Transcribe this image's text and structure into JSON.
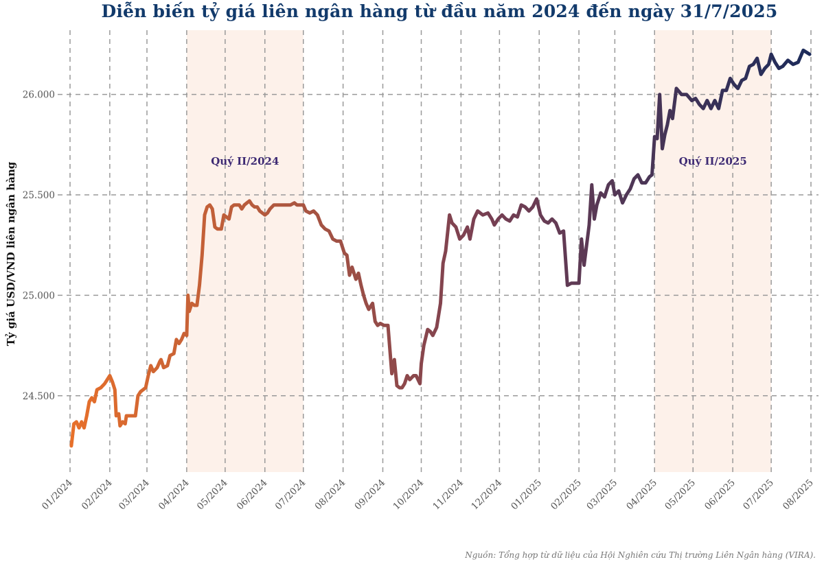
{
  "title": "Diễn biến tỷ giá liên ngân hàng từ đầu năm 2024 đến ngày 31/7/2025",
  "source": "Nguồn: Tổng hợp từ dữ liệu của Hội Nghiên cứu Thị trường Liên Ngân hàng (VIRA).",
  "colors": {
    "start": "#e8702a",
    "end": "#1c2b5a",
    "band": "#fdf1ea",
    "band_label": "#3d2a73",
    "title": "#123a6b",
    "grid": "#999999"
  },
  "chart_data": {
    "type": "line",
    "title": "Diễn biến tỷ giá liên ngân hàng từ đầu năm 2024 đến ngày 31/7/2025",
    "ylabel": "Tỷ giá USD/VND liên ngân hàng",
    "xlabel": "",
    "grid": true,
    "x_ticks": [
      "01/2024",
      "02/2024",
      "03/2024",
      "04/2024",
      "05/2024",
      "06/2024",
      "07/2024",
      "08/2024",
      "09/2024",
      "10/2024",
      "11/2024",
      "12/2024",
      "01/2025",
      "02/2025",
      "03/2025",
      "04/2025",
      "05/2025",
      "06/2025",
      "07/2025",
      "08/2025"
    ],
    "y_ticks": [
      24500,
      25000,
      25500,
      26000
    ],
    "y_tick_labels": [
      "24.500",
      "25.000",
      "25.500",
      "26.000"
    ],
    "ylim": [
      24120,
      26320
    ],
    "xlim": [
      "2024-01-01",
      "2025-08-01"
    ],
    "bands": [
      {
        "label": "Quý II/2024",
        "start": "2024-04-01",
        "end": "2024-07-01"
      },
      {
        "label": "Quý II/2025",
        "start": "2025-04-01",
        "end": "2025-07-01"
      }
    ],
    "series": [
      {
        "points": [
          [
            "2024-01-02",
            24250
          ],
          [
            "2024-01-04",
            24360
          ],
          [
            "2024-01-06",
            24370
          ],
          [
            "2024-01-08",
            24340
          ],
          [
            "2024-01-10",
            24370
          ],
          [
            "2024-01-12",
            24340
          ],
          [
            "2024-01-14",
            24400
          ],
          [
            "2024-01-16",
            24470
          ],
          [
            "2024-01-18",
            24490
          ],
          [
            "2024-01-20",
            24470
          ],
          [
            "2024-01-22",
            24530
          ],
          [
            "2024-01-25",
            24540
          ],
          [
            "2024-01-28",
            24560
          ],
          [
            "2024-02-01",
            24600
          ],
          [
            "2024-02-03",
            24570
          ],
          [
            "2024-02-05",
            24530
          ],
          [
            "2024-02-06",
            24400
          ],
          [
            "2024-02-08",
            24410
          ],
          [
            "2024-02-09",
            24350
          ],
          [
            "2024-02-11",
            24370
          ],
          [
            "2024-02-13",
            24360
          ],
          [
            "2024-02-14",
            24400
          ],
          [
            "2024-02-18",
            24400
          ],
          [
            "2024-02-21",
            24400
          ],
          [
            "2024-02-23",
            24500
          ],
          [
            "2024-02-25",
            24520
          ],
          [
            "2024-02-27",
            24530
          ],
          [
            "2024-02-29",
            24540
          ],
          [
            "2024-03-02",
            24600
          ],
          [
            "2024-03-04",
            24650
          ],
          [
            "2024-03-06",
            24620
          ],
          [
            "2024-03-09",
            24640
          ],
          [
            "2024-03-11",
            24670
          ],
          [
            "2024-03-12",
            24680
          ],
          [
            "2024-03-14",
            24640
          ],
          [
            "2024-03-17",
            24650
          ],
          [
            "2024-03-19",
            24700
          ],
          [
            "2024-03-22",
            24710
          ],
          [
            "2024-03-24",
            24780
          ],
          [
            "2024-03-26",
            24760
          ],
          [
            "2024-03-28",
            24780
          ],
          [
            "2024-03-30",
            24810
          ],
          [
            "2024-04-01",
            24800
          ],
          [
            "2024-04-02",
            25000
          ],
          [
            "2024-04-03",
            24920
          ],
          [
            "2024-04-05",
            24960
          ],
          [
            "2024-04-07",
            24950
          ],
          [
            "2024-04-09",
            24950
          ],
          [
            "2024-04-11",
            25050
          ],
          [
            "2024-04-13",
            25200
          ],
          [
            "2024-04-15",
            25400
          ],
          [
            "2024-04-17",
            25440
          ],
          [
            "2024-04-19",
            25450
          ],
          [
            "2024-04-21",
            25430
          ],
          [
            "2024-04-23",
            25340
          ],
          [
            "2024-04-25",
            25330
          ],
          [
            "2024-04-28",
            25330
          ],
          [
            "2024-04-30",
            25400
          ],
          [
            "2024-05-02",
            25390
          ],
          [
            "2024-05-04",
            25380
          ],
          [
            "2024-05-06",
            25440
          ],
          [
            "2024-05-08",
            25450
          ],
          [
            "2024-05-10",
            25450
          ],
          [
            "2024-05-12",
            25450
          ],
          [
            "2024-05-14",
            25430
          ],
          [
            "2024-05-16",
            25450
          ],
          [
            "2024-05-18",
            25460
          ],
          [
            "2024-05-20",
            25470
          ],
          [
            "2024-05-22",
            25450
          ],
          [
            "2024-05-24",
            25440
          ],
          [
            "2024-05-26",
            25440
          ],
          [
            "2024-05-28",
            25420
          ],
          [
            "2024-05-30",
            25410
          ],
          [
            "2024-06-01",
            25400
          ],
          [
            "2024-06-03",
            25410
          ],
          [
            "2024-06-05",
            25430
          ],
          [
            "2024-06-08",
            25450
          ],
          [
            "2024-06-12",
            25450
          ],
          [
            "2024-06-15",
            25450
          ],
          [
            "2024-06-18",
            25450
          ],
          [
            "2024-06-21",
            25450
          ],
          [
            "2024-06-24",
            25460
          ],
          [
            "2024-06-26",
            25450
          ],
          [
            "2024-06-28",
            25450
          ],
          [
            "2024-07-01",
            25450
          ],
          [
            "2024-07-03",
            25420
          ],
          [
            "2024-07-06",
            25410
          ],
          [
            "2024-07-09",
            25420
          ],
          [
            "2024-07-12",
            25400
          ],
          [
            "2024-07-15",
            25350
          ],
          [
            "2024-07-18",
            25330
          ],
          [
            "2024-07-21",
            25320
          ],
          [
            "2024-07-24",
            25280
          ],
          [
            "2024-07-27",
            25270
          ],
          [
            "2024-07-30",
            25270
          ],
          [
            "2024-08-02",
            25210
          ],
          [
            "2024-08-04",
            25200
          ],
          [
            "2024-08-06",
            25100
          ],
          [
            "2024-08-08",
            25140
          ],
          [
            "2024-08-11",
            25080
          ],
          [
            "2024-08-13",
            25110
          ],
          [
            "2024-08-15",
            25050
          ],
          [
            "2024-08-17",
            25000
          ],
          [
            "2024-08-19",
            24960
          ],
          [
            "2024-08-21",
            24930
          ],
          [
            "2024-08-24",
            24960
          ],
          [
            "2024-08-26",
            24870
          ],
          [
            "2024-08-28",
            24850
          ],
          [
            "2024-08-30",
            24860
          ],
          [
            "2024-09-02",
            24850
          ],
          [
            "2024-09-05",
            24850
          ],
          [
            "2024-09-08",
            24610
          ],
          [
            "2024-09-10",
            24680
          ],
          [
            "2024-09-12",
            24550
          ],
          [
            "2024-09-14",
            24540
          ],
          [
            "2024-09-16",
            24540
          ],
          [
            "2024-09-18",
            24560
          ],
          [
            "2024-09-20",
            24600
          ],
          [
            "2024-09-22",
            24580
          ],
          [
            "2024-09-25",
            24600
          ],
          [
            "2024-09-27",
            24600
          ],
          [
            "2024-09-30",
            24560
          ],
          [
            "2024-10-01",
            24660
          ],
          [
            "2024-10-03",
            24750
          ],
          [
            "2024-10-06",
            24830
          ],
          [
            "2024-10-08",
            24820
          ],
          [
            "2024-10-10",
            24800
          ],
          [
            "2024-10-13",
            24840
          ],
          [
            "2024-10-16",
            24960
          ],
          [
            "2024-10-18",
            25160
          ],
          [
            "2024-10-20",
            25220
          ],
          [
            "2024-10-23",
            25400
          ],
          [
            "2024-10-25",
            25360
          ],
          [
            "2024-10-28",
            25340
          ],
          [
            "2024-10-31",
            25280
          ],
          [
            "2024-11-03",
            25300
          ],
          [
            "2024-11-06",
            25340
          ],
          [
            "2024-11-08",
            25280
          ],
          [
            "2024-11-11",
            25380
          ],
          [
            "2024-11-14",
            25420
          ],
          [
            "2024-11-18",
            25400
          ],
          [
            "2024-11-22",
            25410
          ],
          [
            "2024-11-25",
            25380
          ],
          [
            "2024-11-27",
            25350
          ],
          [
            "2024-11-30",
            25380
          ],
          [
            "2024-12-03",
            25400
          ],
          [
            "2024-12-06",
            25380
          ],
          [
            "2024-12-09",
            25370
          ],
          [
            "2024-12-12",
            25400
          ],
          [
            "2024-12-15",
            25390
          ],
          [
            "2024-12-18",
            25450
          ],
          [
            "2024-12-21",
            25440
          ],
          [
            "2024-12-24",
            25420
          ],
          [
            "2024-12-27",
            25440
          ],
          [
            "2024-12-30",
            25480
          ],
          [
            "2025-01-02",
            25400
          ],
          [
            "2025-01-05",
            25370
          ],
          [
            "2025-01-08",
            25360
          ],
          [
            "2025-01-11",
            25380
          ],
          [
            "2025-01-14",
            25360
          ],
          [
            "2025-01-17",
            25310
          ],
          [
            "2025-01-20",
            25320
          ],
          [
            "2025-01-23",
            25050
          ],
          [
            "2025-01-26",
            25060
          ],
          [
            "2025-01-29",
            25060
          ],
          [
            "2025-02-01",
            25060
          ],
          [
            "2025-02-03",
            25280
          ],
          [
            "2025-02-05",
            25150
          ],
          [
            "2025-02-07",
            25250
          ],
          [
            "2025-02-09",
            25350
          ],
          [
            "2025-02-11",
            25550
          ],
          [
            "2025-02-13",
            25380
          ],
          [
            "2025-02-15",
            25450
          ],
          [
            "2025-02-18",
            25510
          ],
          [
            "2025-02-21",
            25490
          ],
          [
            "2025-02-24",
            25550
          ],
          [
            "2025-02-27",
            25570
          ],
          [
            "2025-03-01",
            25500
          ],
          [
            "2025-03-04",
            25520
          ],
          [
            "2025-03-07",
            25460
          ],
          [
            "2025-03-10",
            25500
          ],
          [
            "2025-03-13",
            25530
          ],
          [
            "2025-03-16",
            25580
          ],
          [
            "2025-03-19",
            25600
          ],
          [
            "2025-03-22",
            25560
          ],
          [
            "2025-03-25",
            25560
          ],
          [
            "2025-03-28",
            25590
          ],
          [
            "2025-03-30",
            25600
          ],
          [
            "2025-04-01",
            25790
          ],
          [
            "2025-04-03",
            25780
          ],
          [
            "2025-04-05",
            26000
          ],
          [
            "2025-04-07",
            25730
          ],
          [
            "2025-04-09",
            25800
          ],
          [
            "2025-04-11",
            25850
          ],
          [
            "2025-04-13",
            25920
          ],
          [
            "2025-04-15",
            25880
          ],
          [
            "2025-04-18",
            26030
          ],
          [
            "2025-04-22",
            26000
          ],
          [
            "2025-04-26",
            26000
          ],
          [
            "2025-04-30",
            25970
          ],
          [
            "2025-05-03",
            25980
          ],
          [
            "2025-05-06",
            25950
          ],
          [
            "2025-05-09",
            25930
          ],
          [
            "2025-05-12",
            25970
          ],
          [
            "2025-05-15",
            25930
          ],
          [
            "2025-05-18",
            25970
          ],
          [
            "2025-05-21",
            25930
          ],
          [
            "2025-05-24",
            26020
          ],
          [
            "2025-05-27",
            26020
          ],
          [
            "2025-05-30",
            26080
          ],
          [
            "2025-06-02",
            26050
          ],
          [
            "2025-06-05",
            26030
          ],
          [
            "2025-06-08",
            26070
          ],
          [
            "2025-06-11",
            26080
          ],
          [
            "2025-06-14",
            26140
          ],
          [
            "2025-06-17",
            26150
          ],
          [
            "2025-06-20",
            26180
          ],
          [
            "2025-06-23",
            26100
          ],
          [
            "2025-06-26",
            26130
          ],
          [
            "2025-06-29",
            26150
          ],
          [
            "2025-07-01",
            26200
          ],
          [
            "2025-07-04",
            26160
          ],
          [
            "2025-07-07",
            26130
          ],
          [
            "2025-07-10",
            26140
          ],
          [
            "2025-07-14",
            26170
          ],
          [
            "2025-07-18",
            26150
          ],
          [
            "2025-07-22",
            26160
          ],
          [
            "2025-07-26",
            26220
          ],
          [
            "2025-07-31",
            26200
          ]
        ]
      }
    ]
  }
}
